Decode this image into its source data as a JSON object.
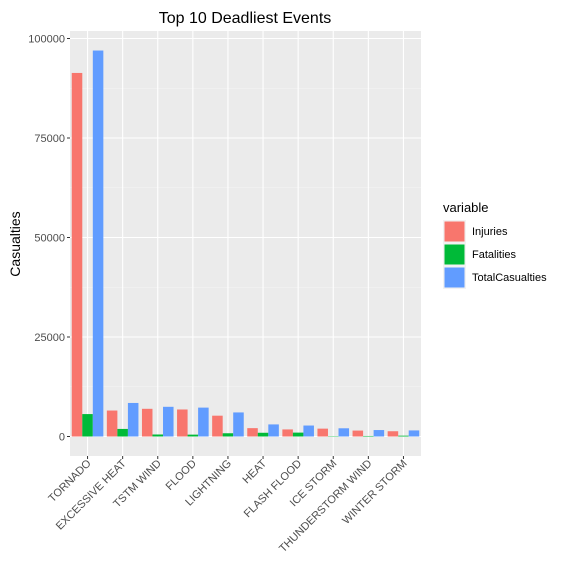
{
  "chart_data": {
    "type": "bar",
    "title": "Top 10 Deadliest Events",
    "xlabel": "",
    "ylabel": "Casualties",
    "categories": [
      "TORNADO",
      "EXCESSIVE HEAT",
      "TSTM WIND",
      "FLOOD",
      "LIGHTNING",
      "HEAT",
      "FLASH FLOOD",
      "ICE STORM",
      "THUNDERSTORM WIND",
      "WINTER STORM"
    ],
    "series": [
      {
        "name": "Injuries",
        "color": "#F8766D",
        "values": [
          91346,
          6525,
          6957,
          6789,
          5230,
          2100,
          1777,
          1975,
          1488,
          1321
        ]
      },
      {
        "name": "Fatalities",
        "color": "#00BA38",
        "values": [
          5633,
          1903,
          504,
          470,
          816,
          937,
          978,
          89,
          133,
          206
        ]
      },
      {
        "name": "TotalCasualties",
        "color": "#619CFF",
        "values": [
          96979,
          8428,
          7461,
          7259,
          6046,
          3037,
          2755,
          2064,
          1621,
          1527
        ]
      }
    ],
    "ylim": [
      0,
      100000
    ],
    "yticks": [
      0,
      25000,
      50000,
      75000,
      100000
    ],
    "legend": {
      "title": "variable",
      "placement": "right"
    },
    "grid": true,
    "background": "#EBEBEB"
  }
}
